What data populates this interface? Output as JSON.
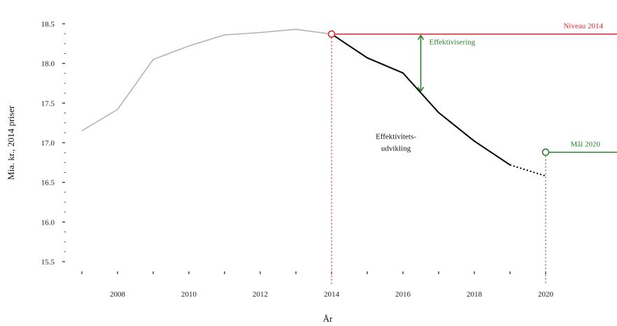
{
  "chart_data": {
    "type": "line",
    "xlabel": "År",
    "ylabel": "Mia. kr., 2014 priser",
    "xlim": [
      2007,
      2022
    ],
    "ylim": [
      15.5,
      18.5
    ],
    "x_ticks": [
      2008,
      2010,
      2012,
      2014,
      2016,
      2018,
      2020
    ],
    "x_tick_labels": [
      "2008",
      "2010",
      "2012",
      "2014",
      "2016",
      "2018",
      "2020"
    ],
    "y_ticks": [
      15.5,
      16.0,
      16.5,
      17.0,
      17.5,
      18.0,
      18.5
    ],
    "y_tick_labels": [
      "15.5",
      "16.0",
      "16.5",
      "17.0",
      "17.5",
      "18.0",
      "18.5"
    ],
    "series": [
      {
        "style": "solid",
        "color": "#b4b4b4",
        "x": [
          2007,
          2008,
          2009,
          2010,
          2011,
          2012,
          2013,
          2014
        ],
        "y": [
          17.15,
          17.42,
          18.05,
          18.22,
          18.36,
          18.39,
          18.43,
          18.37
        ]
      },
      {
        "style": "solid",
        "color": "#000000",
        "x": [
          2014,
          2015,
          2016,
          2016.5,
          2017,
          2018,
          2019
        ],
        "y": [
          18.37,
          18.07,
          17.88,
          17.63,
          17.38,
          17.02,
          16.72
        ]
      },
      {
        "style": "dotted",
        "color": "#000000",
        "x": [
          2019,
          2020
        ],
        "y": [
          16.72,
          16.58
        ]
      }
    ],
    "reference_lines": [
      {
        "label": "Niveau 2014",
        "color": "#d9262c",
        "x_start": 2014,
        "y": 18.37
      },
      {
        "label": "Mål 2020",
        "color": "#2e7d2e",
        "x_start": 2020,
        "y": 16.88
      }
    ],
    "vertical_markers": [
      {
        "x": 2014,
        "y_top": 18.37,
        "color": "#d9262c"
      },
      {
        "x": 2020,
        "y_top": 16.88,
        "color": "#2e7d2e"
      }
    ],
    "arrow": {
      "x": 2016.5,
      "y_from": 18.37,
      "y_to": 17.63,
      "label": "Effektivisering",
      "color": "#2e7d2e"
    },
    "annotations": [
      {
        "text_lines": [
          "Effektivitets-",
          "udvikling"
        ],
        "x": 2016,
        "y": 17.05
      }
    ],
    "grid": false
  }
}
